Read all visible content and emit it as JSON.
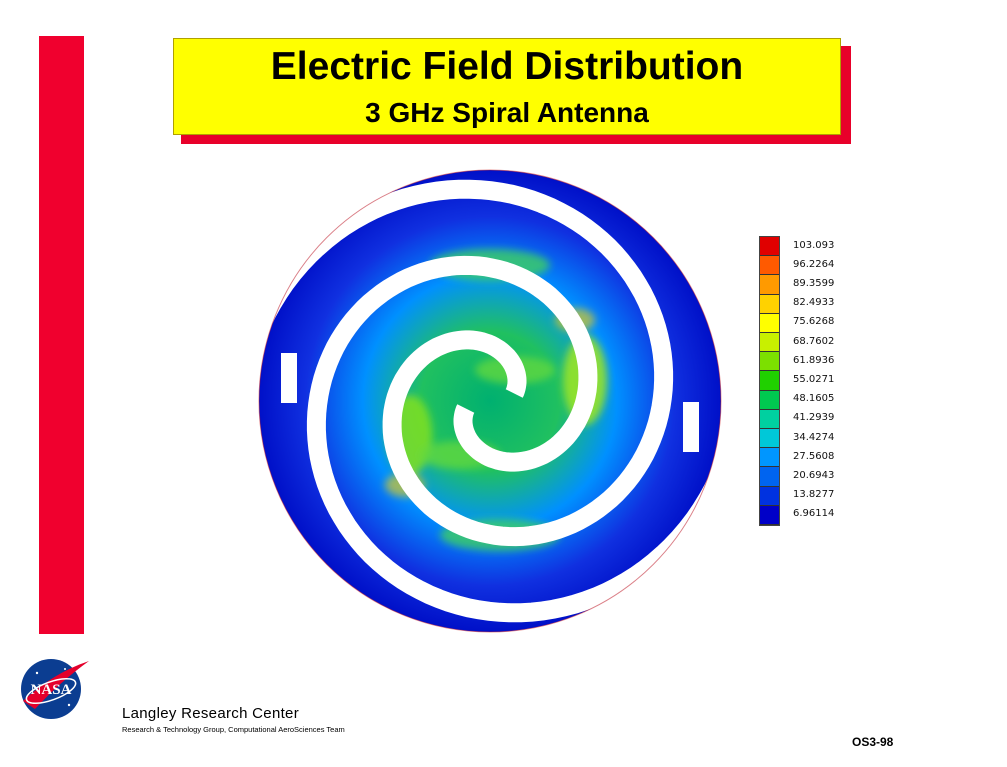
{
  "title": {
    "main": "Electric Field Distribution",
    "subtitle": "3 GHz Spiral Antenna"
  },
  "colorbar": {
    "labels": [
      "103.093",
      "96.2264",
      "89.3599",
      "82.4933",
      "75.6268",
      "68.7602",
      "61.8936",
      "55.0271",
      "48.1605",
      "41.2939",
      "34.4274",
      "27.5608",
      "20.6943",
      "13.8277",
      "6.96114"
    ],
    "colors": [
      "#e00000",
      "#ff5a00",
      "#ff9a00",
      "#ffd200",
      "#ffff00",
      "#c8f000",
      "#7ce000",
      "#20d000",
      "#00c850",
      "#00d0a0",
      "#00c8d8",
      "#0096ff",
      "#0064f0",
      "#0032e0",
      "#0000c8"
    ]
  },
  "logo": {
    "text": "NASA"
  },
  "footer": {
    "center": "Langley Research Center",
    "team": "Research & Technology Group, Computational AeroSciences Team",
    "code": "OS3-98"
  }
}
